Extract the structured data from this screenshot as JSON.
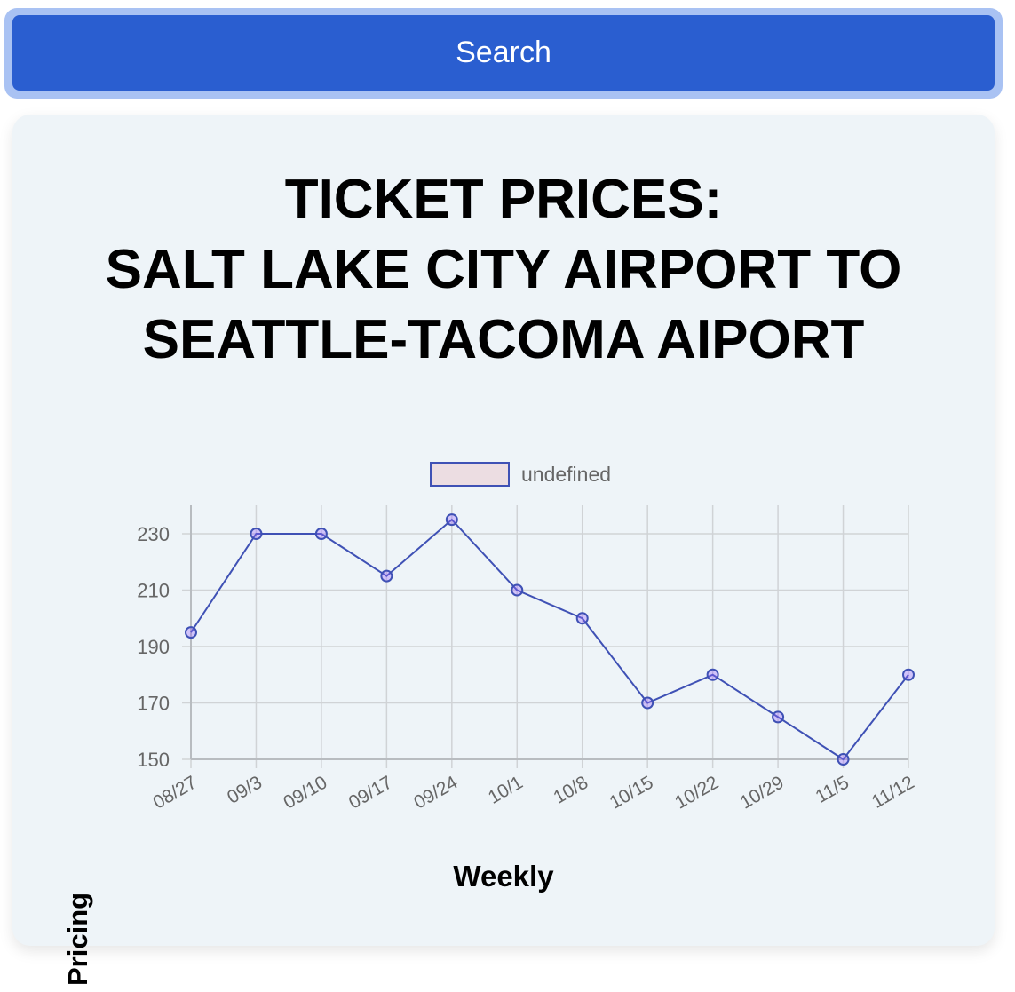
{
  "search": {
    "label": "Search"
  },
  "colors": {
    "button": "#2a5ed0",
    "card_background": "#eef4f8",
    "line": "#3f51b5",
    "point_fill": "rgba(153,102,255,0.35)",
    "legend_fill": "#ecdde2",
    "grid": "#d0d3d6"
  },
  "chart_data": {
    "type": "line",
    "title": [
      "TICKET PRICES:",
      "SALT LAKE CITY AIRPORT TO",
      "SEATTLE-TACOMA AIPORT"
    ],
    "xlabel": "Weekly",
    "ylabel": "Pricing",
    "legend": {
      "position": "top",
      "entries": [
        "undefined"
      ]
    },
    "grid": true,
    "categories": [
      "08/27",
      "09/3",
      "09/10",
      "09/17",
      "09/24",
      "10/1",
      "10/8",
      "10/15",
      "10/22",
      "10/29",
      "11/5",
      "11/12"
    ],
    "series": [
      {
        "name": "undefined",
        "values": [
          195,
          230,
          230,
          215,
          235,
          210,
          200,
          170,
          180,
          165,
          150,
          180
        ]
      }
    ],
    "yticks": [
      150,
      170,
      190,
      210,
      230
    ],
    "ylim": [
      150,
      240
    ]
  }
}
